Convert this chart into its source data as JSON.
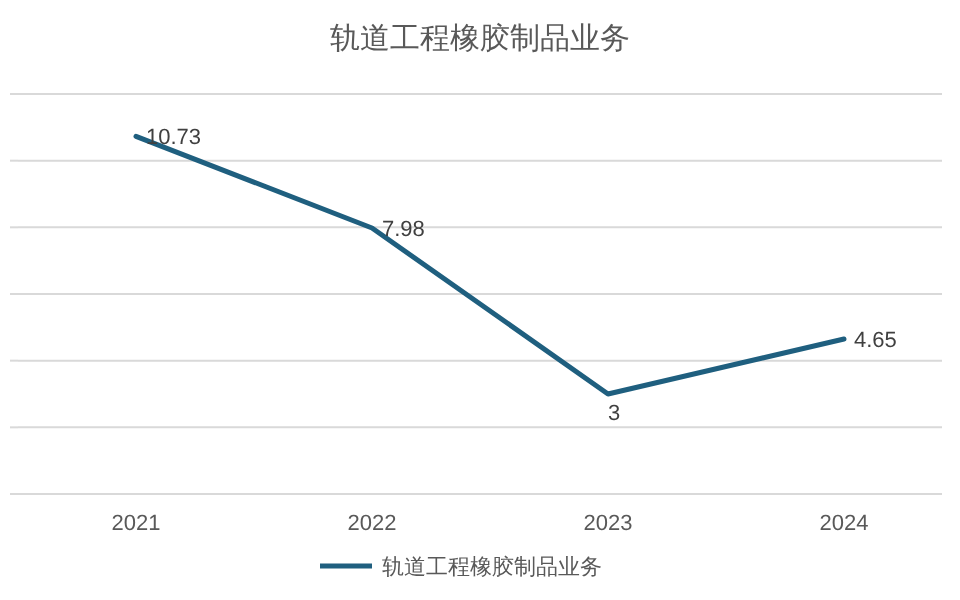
{
  "chart_data": {
    "type": "line",
    "title": "轨道工程橡胶制品业务",
    "categories": [
      "2021",
      "2022",
      "2023",
      "2024"
    ],
    "series": [
      {
        "name": "轨道工程橡胶制品业务",
        "color": "#1f5f7f",
        "values": [
          10.73,
          7.98,
          3,
          4.65
        ]
      }
    ],
    "ylim": [
      0,
      12
    ],
    "yticks": [
      {
        "value": 0,
        "label": null
      },
      {
        "value": 2,
        "label": null
      },
      {
        "value": 4,
        "label": null
      },
      {
        "value": 6,
        "label": null
      },
      {
        "value": 8,
        "label": null
      },
      {
        "value": 10,
        "label": null
      },
      {
        "value": 12,
        "label": null
      }
    ],
    "tick_labels": "x",
    "grid": "y",
    "legend": "bottom",
    "data_labels": true
  }
}
